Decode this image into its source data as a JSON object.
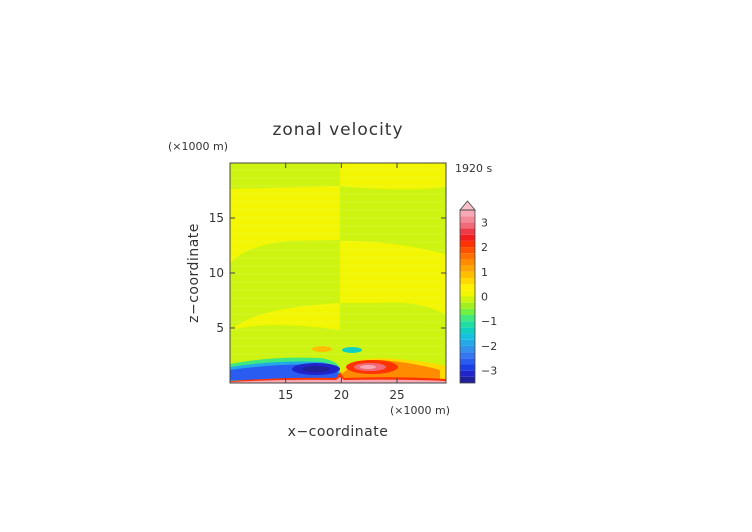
{
  "chart_data": {
    "type": "heatmap",
    "title": "zonal velocity",
    "xlabel": "x−coordinate",
    "ylabel": "z−coordinate",
    "x_unit": "(×1000 m)",
    "y_unit": "(×1000 m)",
    "time_label": "1920 s",
    "xlim": [
      10,
      29.4
    ],
    "ylim": [
      0,
      20
    ],
    "x_ticks": [
      15,
      20,
      25
    ],
    "y_ticks": [
      5,
      10,
      15
    ],
    "colorbar": {
      "levels": [
        -3.5,
        -3.25,
        -3,
        -2.75,
        -2.5,
        -2.25,
        -2,
        -1.75,
        -1.5,
        -1.25,
        -1,
        -0.75,
        -0.5,
        -0.25,
        0,
        0.25,
        0.5,
        0.75,
        1,
        1.25,
        1.5,
        1.75,
        2,
        2.25,
        2.5,
        2.75,
        3,
        3.25,
        3.5
      ],
      "colors": [
        "#20209a",
        "#1f25c8",
        "#1a3fe6",
        "#2a5cf2",
        "#3378f0",
        "#3090ec",
        "#23a8e8",
        "#15c0e0",
        "#10d0c0",
        "#20dea0",
        "#40e880",
        "#70f040",
        "#a0f020",
        "#ccf410",
        "#f2f600",
        "#fff200",
        "#ffd900",
        "#ffbf00",
        "#ffa500",
        "#ff8c00",
        "#ff7000",
        "#ff5200",
        "#ff3300",
        "#f21d1d",
        "#ee3a48",
        "#f06a78",
        "#f28a98",
        "#f6a9b4"
      ],
      "extend_color": "#f8c0c8",
      "tick_labels": [
        "3",
        "2",
        "1",
        "0",
        "−1",
        "−2",
        "−3"
      ],
      "tick_values": [
        3,
        2,
        1,
        0,
        -1,
        -2,
        -3
      ]
    },
    "fields": [
      {
        "region": "left",
        "x_range": [
          10,
          20
        ],
        "z_range": [
          0,
          20
        ],
        "value": 0.1
      },
      {
        "region": "right",
        "x_range": [
          20,
          29.4
        ],
        "z_range": [
          0,
          20
        ],
        "value": -0.1
      },
      {
        "region": "band-top",
        "x_range": [
          10,
          29.4
        ],
        "z_range": [
          17.8,
          20
        ],
        "value": 0.1
      },
      {
        "region": "near-surface-west",
        "x_range": [
          15.5,
          19.2
        ],
        "z_range": [
          0.8,
          1.6
        ],
        "value": -3.2
      },
      {
        "region": "near-surface-east",
        "x_range": [
          21.0,
          25.5
        ],
        "z_range": [
          1.2,
          2.3
        ],
        "value": 3.1
      },
      {
        "region": "surface-strip",
        "x_range": [
          10,
          29.4
        ],
        "z_range": [
          0,
          0.3
        ],
        "value": 2.8
      }
    ]
  }
}
